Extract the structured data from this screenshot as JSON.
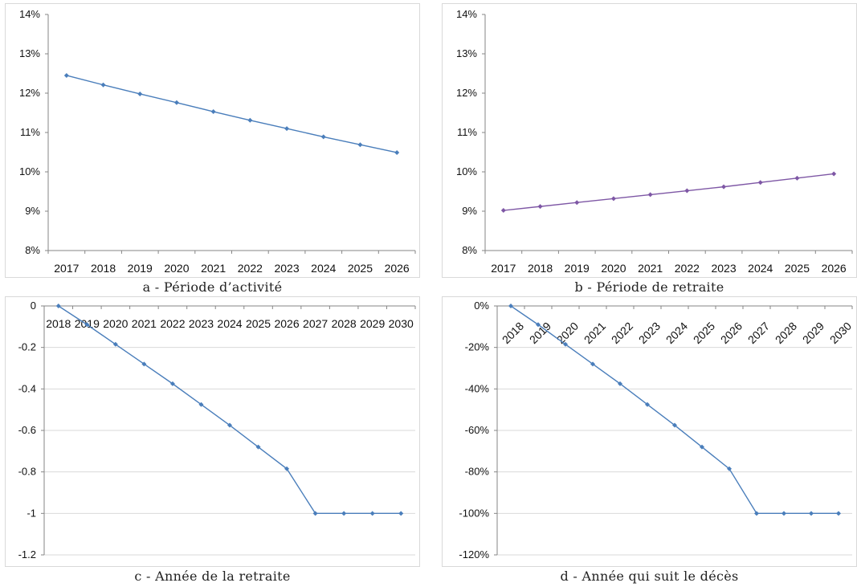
{
  "chart_data": [
    {
      "id": "a",
      "type": "line",
      "caption": "a - Période d’activité",
      "categories": [
        "2017",
        "2018",
        "2019",
        "2020",
        "2021",
        "2022",
        "2023",
        "2024",
        "2025",
        "2026"
      ],
      "series": [
        {
          "values": [
            12.45,
            12.21,
            11.98,
            11.76,
            11.53,
            11.31,
            11.1,
            10.89,
            10.69,
            10.49
          ],
          "color": "#4a7ebb"
        }
      ],
      "ylim": [
        8,
        14
      ],
      "yticks": [
        8,
        9,
        10,
        11,
        12,
        13,
        14
      ],
      "ytick_labels": [
        "8%",
        "9%",
        "10%",
        "11%",
        "12%",
        "13%",
        "14%"
      ],
      "gridlines": false,
      "xaxis_position": "bottom",
      "xlabel_rotation": 0
    },
    {
      "id": "b",
      "type": "line",
      "caption": "b - Période de retraite",
      "categories": [
        "2017",
        "2018",
        "2019",
        "2020",
        "2021",
        "2022",
        "2023",
        "2024",
        "2025",
        "2026"
      ],
      "series": [
        {
          "values": [
            9.02,
            9.12,
            9.22,
            9.32,
            9.42,
            9.52,
            9.62,
            9.73,
            9.84,
            9.95
          ],
          "color": "#7e57a5"
        }
      ],
      "ylim": [
        8,
        14
      ],
      "yticks": [
        8,
        9,
        10,
        11,
        12,
        13,
        14
      ],
      "ytick_labels": [
        "8%",
        "9%",
        "10%",
        "11%",
        "12%",
        "13%",
        "14%"
      ],
      "gridlines": false,
      "xaxis_position": "bottom",
      "xlabel_rotation": 0
    },
    {
      "id": "c",
      "type": "line",
      "caption": "c - Année de la retraite",
      "categories": [
        "2018",
        "2019",
        "2020",
        "2021",
        "2022",
        "2023",
        "2024",
        "2025",
        "2026",
        "2027",
        "2028",
        "2029",
        "2030"
      ],
      "series": [
        {
          "values": [
            0,
            -0.09,
            -0.185,
            -0.28,
            -0.375,
            -0.475,
            -0.575,
            -0.68,
            -0.785,
            -1,
            -1,
            -1,
            -1
          ],
          "color": "#4a7ebb"
        }
      ],
      "ylim": [
        -1.2,
        0
      ],
      "yticks": [
        0,
        -0.2,
        -0.4,
        -0.6,
        -0.8,
        -1,
        -1.2
      ],
      "ytick_labels": [
        "0",
        "-0.2",
        "-0.4",
        "-0.6",
        "-0.8",
        "-1",
        "-1.2"
      ],
      "gridlines": true,
      "xaxis_position": "top",
      "xlabel_rotation": 0
    },
    {
      "id": "d",
      "type": "line",
      "caption": "d - Année qui suit le décès",
      "categories": [
        "2018",
        "2019",
        "2020",
        "2021",
        "2022",
        "2023",
        "2024",
        "2025",
        "2026",
        "2027",
        "2028",
        "2029",
        "2030"
      ],
      "series": [
        {
          "values": [
            0,
            -9,
            -18.5,
            -28,
            -37.5,
            -47.5,
            -57.5,
            -68,
            -78.5,
            -100,
            -100,
            -100,
            -100
          ],
          "color": "#4a7ebb"
        }
      ],
      "ylim": [
        -120,
        0
      ],
      "yticks": [
        0,
        -20,
        -40,
        -60,
        -80,
        -100,
        -120
      ],
      "ytick_labels": [
        "0%",
        "-20%",
        "-40%",
        "-60%",
        "-80%",
        "-100%",
        "-120%"
      ],
      "gridlines": true,
      "xaxis_position": "top",
      "xlabel_rotation": -45
    }
  ]
}
